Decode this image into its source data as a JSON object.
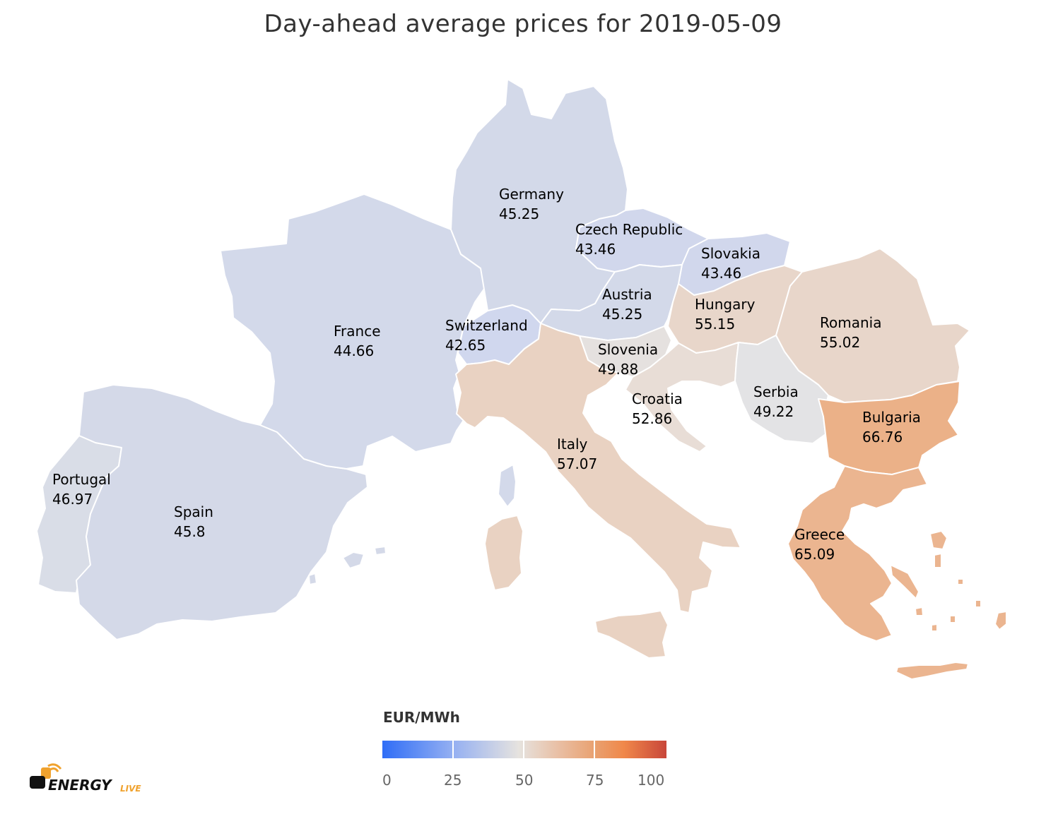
{
  "title": "Day-ahead average prices for 2019-05-09",
  "legend": {
    "unit": "EUR/MWh",
    "ticks": [
      "0",
      "25",
      "50",
      "75",
      "100"
    ],
    "colors": [
      "#2f6df6",
      "#95b0f2",
      "#e6e3df",
      "#e9a06f",
      "#c8463a"
    ]
  },
  "countries": [
    {
      "name": "Germany",
      "price": "45.25",
      "color": "#d3d9e9"
    },
    {
      "name": "Czech Republic",
      "price": "43.46",
      "color": "#d1d7ec"
    },
    {
      "name": "Slovakia",
      "price": "43.46",
      "color": "#d1d7ec"
    },
    {
      "name": "Austria",
      "price": "45.25",
      "color": "#d3d9e9"
    },
    {
      "name": "Hungary",
      "price": "55.15",
      "color": "#e8d6ca"
    },
    {
      "name": "Romania",
      "price": "55.02",
      "color": "#e8d6ca"
    },
    {
      "name": "France",
      "price": "44.66",
      "color": "#d3d9ea"
    },
    {
      "name": "Switzerland",
      "price": "42.65",
      "color": "#d0d7ee"
    },
    {
      "name": "Slovenia",
      "price": "49.88",
      "color": "#e5e1df"
    },
    {
      "name": "Croatia",
      "price": "52.86",
      "color": "#e8ddd6"
    },
    {
      "name": "Serbia",
      "price": "49.22",
      "color": "#e3e3e5"
    },
    {
      "name": "Bulgaria",
      "price": "66.76",
      "color": "#ebb188"
    },
    {
      "name": "Italy",
      "price": "57.07",
      "color": "#e9d2c2"
    },
    {
      "name": "Portugal",
      "price": "46.97",
      "color": "#d9dde7"
    },
    {
      "name": "Spain",
      "price": "45.8",
      "color": "#d4d9e8"
    },
    {
      "name": "Greece",
      "price": "65.09",
      "color": "#ebb590"
    }
  ],
  "brand": {
    "name": "ENERGY",
    "suffix": "LIVE"
  }
}
